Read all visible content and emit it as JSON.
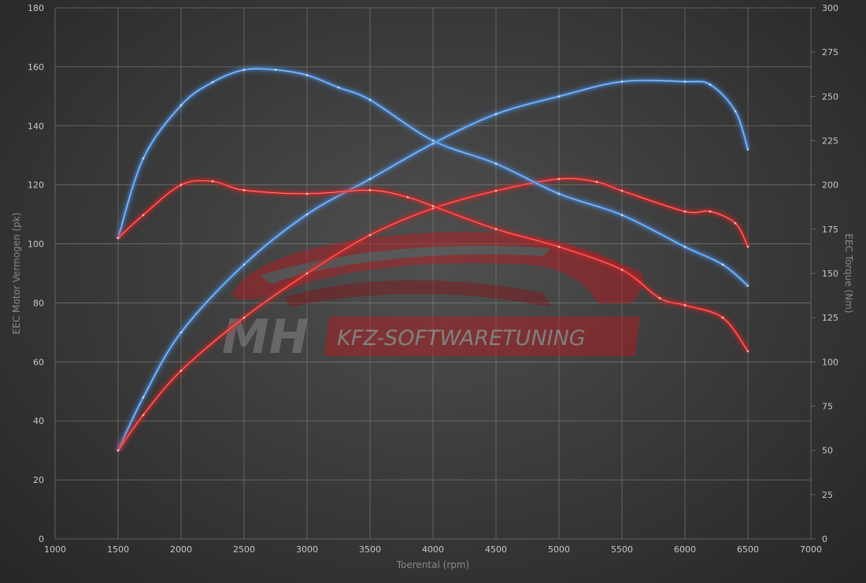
{
  "chart_data": {
    "type": "line",
    "xlabel": "Toerental (rpm)",
    "ylabel_left": "EEC Motor Vermogen (pk)",
    "ylabel_right": "EEC Torque (Nm)",
    "xlim": [
      1000,
      7000
    ],
    "ylim_left": [
      0,
      180
    ],
    "ylim_right": [
      0,
      300
    ],
    "x_ticks": [
      1000,
      1500,
      2000,
      2500,
      3000,
      3500,
      4000,
      4500,
      5000,
      5500,
      6000,
      6500,
      7000
    ],
    "y_ticks_left": [
      0,
      20,
      40,
      60,
      80,
      100,
      120,
      140,
      160,
      180
    ],
    "y_ticks_right": [
      0,
      25,
      50,
      75,
      100,
      125,
      150,
      175,
      200,
      225,
      250,
      275,
      300
    ],
    "grid": true,
    "series": [
      {
        "axis": "left",
        "color": "#4a90e2",
        "points": [
          [
            1500,
            30
          ],
          [
            1700,
            48
          ],
          [
            2000,
            70
          ],
          [
            2500,
            93
          ],
          [
            3000,
            110
          ],
          [
            3500,
            122
          ],
          [
            4000,
            134
          ],
          [
            4500,
            144
          ],
          [
            5000,
            150
          ],
          [
            5500,
            155
          ],
          [
            6000,
            155
          ],
          [
            6200,
            154
          ],
          [
            6400,
            145
          ],
          [
            6500,
            132
          ]
        ]
      },
      {
        "axis": "left",
        "color": "#e02424",
        "points": [
          [
            1500,
            30
          ],
          [
            1700,
            42
          ],
          [
            2000,
            57
          ],
          [
            2500,
            75
          ],
          [
            3000,
            90
          ],
          [
            3500,
            103
          ],
          [
            4000,
            112
          ],
          [
            4500,
            118
          ],
          [
            5000,
            122
          ],
          [
            5300,
            121
          ],
          [
            5500,
            118
          ],
          [
            6000,
            111
          ],
          [
            6200,
            111
          ],
          [
            6400,
            107
          ],
          [
            6500,
            99
          ]
        ]
      },
      {
        "axis": "right",
        "color": "#4a90e2",
        "points": [
          [
            1500,
            170
          ],
          [
            1700,
            215
          ],
          [
            2000,
            245
          ],
          [
            2250,
            258
          ],
          [
            2500,
            265
          ],
          [
            2750,
            265
          ],
          [
            3000,
            262
          ],
          [
            3250,
            255
          ],
          [
            3500,
            248
          ],
          [
            4000,
            225
          ],
          [
            4500,
            212
          ],
          [
            5000,
            195
          ],
          [
            5500,
            183
          ],
          [
            6000,
            165
          ],
          [
            6300,
            155
          ],
          [
            6500,
            143
          ]
        ]
      },
      {
        "axis": "right",
        "color": "#e02424",
        "points": [
          [
            1500,
            170
          ],
          [
            1700,
            183
          ],
          [
            2000,
            200
          ],
          [
            2250,
            202
          ],
          [
            2500,
            197
          ],
          [
            3000,
            195
          ],
          [
            3500,
            197
          ],
          [
            3800,
            193
          ],
          [
            4000,
            188
          ],
          [
            4500,
            175
          ],
          [
            5000,
            165
          ],
          [
            5500,
            152
          ],
          [
            5800,
            136
          ],
          [
            6000,
            132
          ],
          [
            6300,
            125
          ],
          [
            6500,
            106
          ]
        ]
      }
    ]
  },
  "watermark": {
    "logo": "MH",
    "text": "KFZ-SOFTWARETUNING"
  }
}
